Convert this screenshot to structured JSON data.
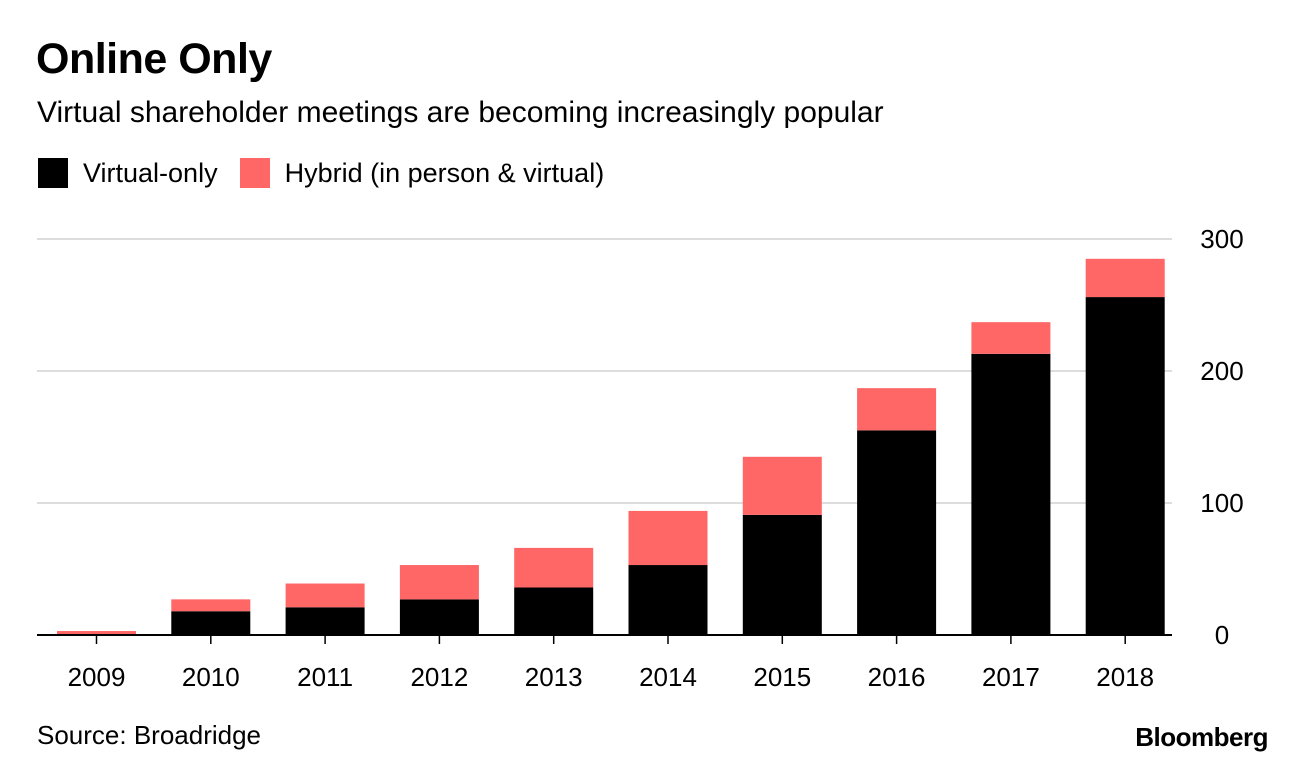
{
  "chart_data": {
    "type": "bar",
    "stacked": true,
    "title": "Online Only",
    "subtitle": "Virtual shareholder meetings are becoming increasingly popular",
    "categories": [
      "2009",
      "2010",
      "2011",
      "2012",
      "2013",
      "2014",
      "2015",
      "2016",
      "2017",
      "2018"
    ],
    "series": [
      {
        "name": "Virtual-only",
        "color": "#000000",
        "values": [
          0,
          18,
          21,
          27,
          36,
          53,
          91,
          155,
          213,
          256
        ]
      },
      {
        "name": "Hybrid (in person & virtual)",
        "color": "#ff6666",
        "values": [
          3,
          9,
          18,
          26,
          30,
          41,
          44,
          32,
          24,
          29
        ]
      }
    ],
    "ylim": [
      0,
      300
    ],
    "yticks": [
      0,
      100,
      200,
      300
    ],
    "y_axis_side": "right",
    "grid": true,
    "legend_position": "top-left",
    "source": "Source: Broadridge",
    "brand": "Bloomberg"
  }
}
